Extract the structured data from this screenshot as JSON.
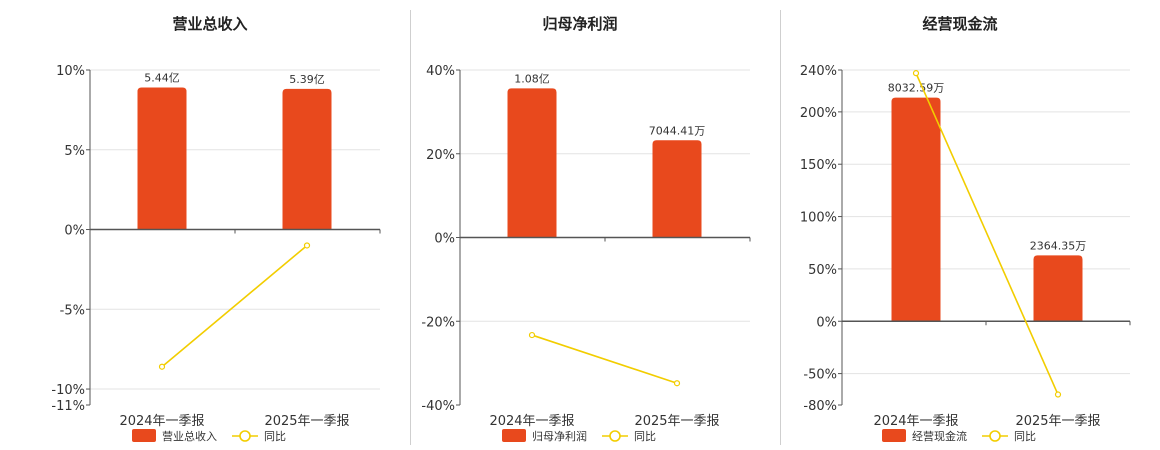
{
  "colors": {
    "bar": "#e8491d",
    "line": "#f2cd00",
    "grid": "#e3e3e3",
    "axis": "#555555"
  },
  "chart_data": [
    {
      "type": "bar",
      "title": "营业总收入",
      "categories": [
        "2024年一季报",
        "2025年一季报"
      ],
      "series": [
        {
          "name": "营业总收入",
          "type": "bar",
          "values": [
            5.44,
            5.39
          ],
          "labels": [
            "5.44亿",
            "5.39亿"
          ],
          "axis": "abs"
        },
        {
          "name": "同比",
          "type": "line",
          "values": [
            -8.6,
            -1.0
          ],
          "axis": "pct"
        }
      ],
      "y_ticks": [
        "10%",
        "5%",
        "0%",
        "-5%",
        "-10%",
        "-11%"
      ],
      "ylim": [
        -11,
        10
      ],
      "legend": "bottom",
      "grid": true
    },
    {
      "type": "bar",
      "title": "归母净利润",
      "categories": [
        "2024年一季报",
        "2025年一季报"
      ],
      "series": [
        {
          "name": "归母净利润",
          "type": "bar",
          "values": [
            1.08,
            0.704441
          ],
          "labels": [
            "1.08亿",
            "7044.41万"
          ],
          "axis": "abs"
        },
        {
          "name": "同比",
          "type": "line",
          "values": [
            -23.3,
            -34.8
          ],
          "axis": "pct"
        }
      ],
      "y_ticks": [
        "40%",
        "20%",
        "0%",
        "-20%",
        "-40%"
      ],
      "ylim": [
        -40,
        40
      ],
      "legend": "bottom",
      "grid": true
    },
    {
      "type": "bar",
      "title": "经营现金流",
      "categories": [
        "2024年一季报",
        "2025年一季报"
      ],
      "series": [
        {
          "name": "经营现金流",
          "type": "bar",
          "values": [
            8032.59,
            2364.35
          ],
          "labels": [
            "8032.59万",
            "2364.35万"
          ],
          "axis": "abs"
        },
        {
          "name": "同比",
          "type": "line",
          "values": [
            237,
            -70
          ],
          "axis": "pct"
        }
      ],
      "y_ticks": [
        "240%",
        "200%",
        "150%",
        "100%",
        "50%",
        "0%",
        "-50%",
        "-80%"
      ],
      "ylim": [
        -80,
        240
      ],
      "legend": "bottom",
      "grid": true
    }
  ]
}
